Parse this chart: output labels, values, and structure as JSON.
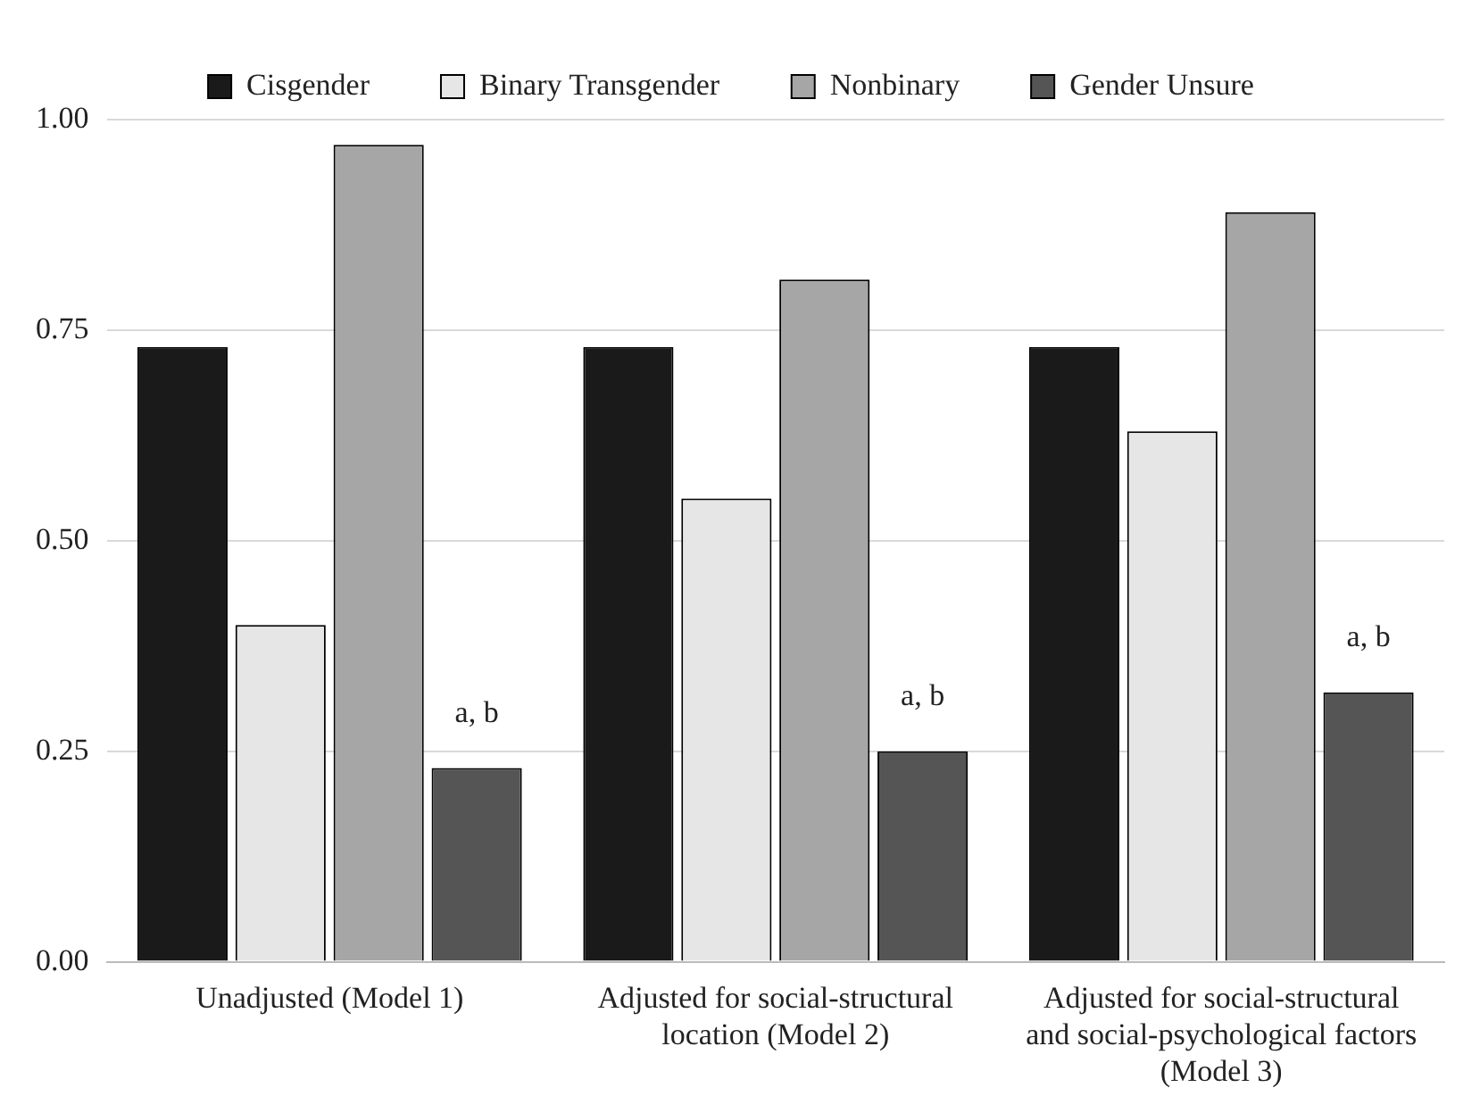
{
  "chart_data": {
    "type": "bar",
    "categories": [
      "Unadjusted (Model 1)",
      "Adjusted for social-structural location (Model 2)",
      "Adjusted for social-structural and social-psychological factors (Model 3)"
    ],
    "series": [
      {
        "name": "Cisgender",
        "color": "#1a1a1a",
        "values": [
          0.73,
          0.73,
          0.73
        ]
      },
      {
        "name": "Binary Transgender",
        "color": "#e6e6e6",
        "values": [
          0.4,
          0.55,
          0.63
        ]
      },
      {
        "name": "Nonbinary",
        "color": "#a6a6a6",
        "values": [
          0.97,
          0.81,
          0.89
        ]
      },
      {
        "name": "Gender Unsure",
        "color": "#555555",
        "values": [
          0.23,
          0.25,
          0.32
        ]
      }
    ],
    "ylim": [
      0,
      1
    ],
    "yticks": [
      {
        "value": 0,
        "label": "0.00"
      },
      {
        "value": 0.25,
        "label": "0.25"
      },
      {
        "value": 0.5,
        "label": "0.50"
      },
      {
        "value": 0.75,
        "label": "0.75"
      },
      {
        "value": 1,
        "label": "1.00"
      }
    ],
    "grid": "y",
    "legend": "top",
    "annotations": [
      "a, b",
      "a, b",
      "a, b"
    ]
  }
}
